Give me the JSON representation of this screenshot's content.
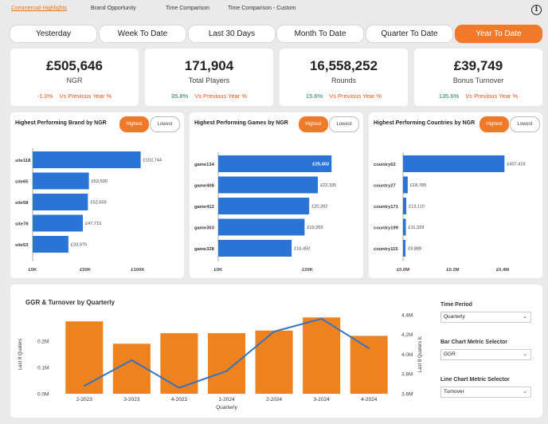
{
  "nav": {
    "tabs": [
      "Commercial Highlights",
      "Brand Opportunity",
      "Time Comparison",
      "Time Comparison - Custom"
    ],
    "info_icon": "i"
  },
  "periods": [
    "Yesterday",
    "Week To Date",
    "Last 30 Days",
    "Month To Date",
    "Quarter To Date",
    "Year To Date"
  ],
  "active_period": "Year To Date",
  "kpis": [
    {
      "value": "£505,646",
      "label": "NGR",
      "change": "-1.0%",
      "vs": "Vs Previous Year %",
      "trend": "neg"
    },
    {
      "value": "171,904",
      "label": "Total Players",
      "change": "35.8%",
      "vs": "Vs Previous Year %",
      "trend": "pos"
    },
    {
      "value": "16,558,252",
      "label": "Rounds",
      "change": "15.6%",
      "vs": "Vs Previous Year %",
      "trend": "pos"
    },
    {
      "value": "£39,749",
      "label": "Bonus Turnover",
      "change": "135.6%",
      "vs": "Vs Previous Year %",
      "trend": "pos"
    }
  ],
  "toggle": {
    "highest": "Highest",
    "lowest": "Lowest"
  },
  "colors": {
    "accent": "#f07a2a",
    "bar_blue": "#2a74d6",
    "line_blue": "#3273c4",
    "bar_orange": "#ee821e"
  },
  "chart_data": [
    {
      "type": "bar",
      "orientation": "horizontal",
      "title": "Highest Performing Brand by NGR",
      "categories": [
        "site118",
        "site65",
        "site58",
        "site78",
        "site53"
      ],
      "values": [
        102744,
        53500,
        52559,
        47715,
        33975
      ],
      "value_labels": [
        "£102,744",
        "£53,500",
        "£52,559",
        "£47,715",
        "£33,975"
      ],
      "xlim": [
        0,
        100000
      ],
      "ticks": [
        0,
        50000,
        100000
      ],
      "tick_labels": [
        "£0K",
        "£50K",
        "£100K"
      ]
    },
    {
      "type": "bar",
      "orientation": "horizontal",
      "title": "Highest Performing Games by NGR",
      "categories": [
        "game134",
        "game408",
        "game412",
        "game303",
        "game328"
      ],
      "values": [
        25402,
        22335,
        20392,
        19355,
        16450
      ],
      "value_labels": [
        "£25,402",
        "£22,335",
        "£20,392",
        "£19,355",
        "£16,450"
      ],
      "xlim": [
        0,
        20000
      ],
      "ticks": [
        0,
        20000
      ],
      "tick_labels": [
        "£0K",
        "£20K"
      ]
    },
    {
      "type": "bar",
      "orientation": "horizontal",
      "title": "Highest Performing Countries by NGR",
      "categories": [
        "country62",
        "country27",
        "country171",
        "country199",
        "country115"
      ],
      "values": [
        407419,
        18785,
        13110,
        11329,
        9888
      ],
      "value_labels": [
        "£407,419",
        "£18,785",
        "£13,110",
        "£11,329",
        "£9,888"
      ],
      "xlim": [
        0,
        400000
      ],
      "ticks": [
        0,
        200000,
        400000
      ],
      "tick_labels": [
        "£0.0M",
        "£0.2M",
        "£0.4M"
      ]
    },
    {
      "type": "bar+line",
      "title_parts": [
        "GGR",
        " & ",
        "Turnover",
        " by ",
        "Quarterly"
      ],
      "categories": [
        "2-2023",
        "3-2023",
        "4-2023",
        "1-2024",
        "2-2024",
        "3-2024",
        "4-2024"
      ],
      "xlabel": "Quarterly",
      "ylabel_left": "Last 8 Quaters",
      "ylabel_right": "Last 8 Quaters lc",
      "bar_values": [
        0.275,
        0.19,
        0.23,
        0.23,
        0.24,
        0.29,
        0.22
      ],
      "ylim_left": [
        0,
        0.3
      ],
      "left_ticks": [
        0,
        0.1,
        0.2
      ],
      "left_tick_labels": [
        "0.0M",
        "0.1M",
        "0.2M"
      ],
      "line_values": [
        3.68,
        3.94,
        3.66,
        3.83,
        4.23,
        4.36,
        4.06
      ],
      "ylim_right": [
        3.6,
        4.4
      ],
      "right_ticks": [
        3.6,
        3.8,
        4.0,
        4.2,
        4.4
      ],
      "right_tick_labels": [
        "3.6M",
        "3.8M",
        "4.0M",
        "4.2M",
        "4.4M"
      ]
    }
  ],
  "selectors": [
    {
      "label": "Time Period",
      "value": "Quarterly"
    },
    {
      "label": "Bar Chart Metric Selector",
      "value": "GGR"
    },
    {
      "label": "Line Chart Metric Selector",
      "value": "Turnover"
    }
  ]
}
